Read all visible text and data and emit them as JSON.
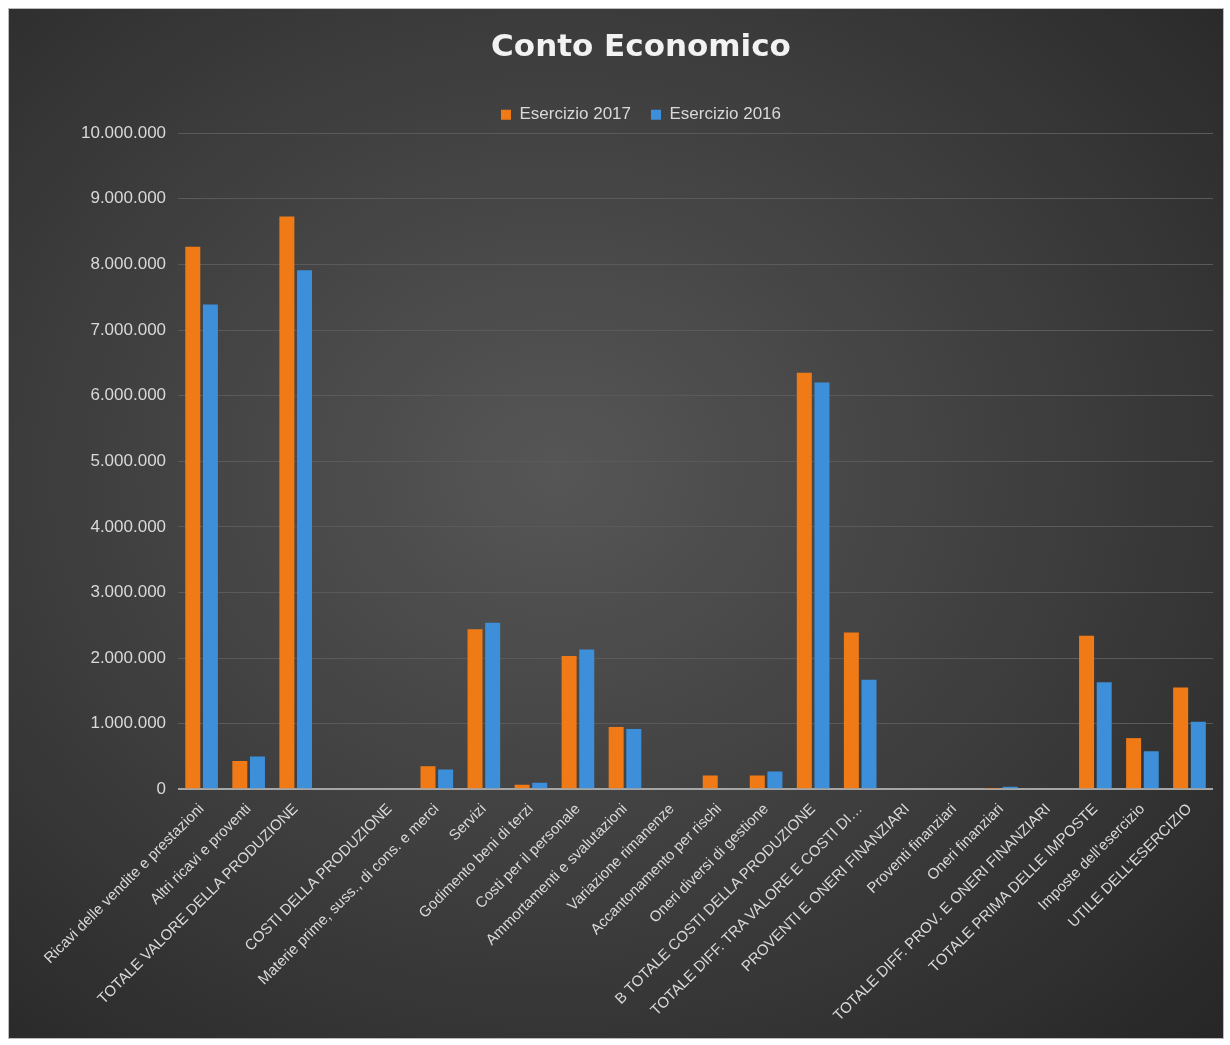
{
  "chart_data": {
    "type": "bar",
    "title": "Conto Economico",
    "categories": [
      "Ricavi delle vendite e prestazioni",
      "Altri ricavi e proventi",
      "TOTALE VALORE DELLA PRODUZIONE",
      null,
      "COSTI DELLA PRODUZIONE",
      "Materie prime, suss., di cons. e merci",
      "Servizi",
      "Godimento beni di terzi",
      "Costi per il personale",
      "Ammortamenti e svalutazioni",
      "Variazione rimanenze",
      "Accantonamento per rischi",
      "Oneri diversi di gestione",
      "B TOTALE COSTI DELLA PRODUZIONE",
      "TOTALE DIFF. TRA VALORE E COSTI DI…",
      "PROVENTI E ONERI FINANZIARI",
      "Proventi finanziari",
      "Oneri finanziari",
      "TOTALE DIFF. PROV. E ONERI FINANZIARI",
      "TOTALE PRIMA DELLE IMPOSTE",
      "Imposte dell’esercizio",
      "UTILE DELL’ESERCIZIO"
    ],
    "series": [
      {
        "name": "Esercizio 2017",
        "color": "#f07b16",
        "values": [
          8270000,
          430000,
          8730000,
          0,
          0,
          350000,
          2440000,
          70000,
          2030000,
          950000,
          0,
          210000,
          210000,
          6350000,
          2390000,
          0,
          0,
          10000,
          0,
          2340000,
          780000,
          1550000
        ]
      },
      {
        "name": "Esercizio 2016",
        "color": "#3d8fd9",
        "values": [
          7390000,
          500000,
          7910000,
          0,
          0,
          300000,
          2540000,
          100000,
          2130000,
          920000,
          0,
          0,
          270000,
          6200000,
          1670000,
          0,
          0,
          40000,
          0,
          1630000,
          580000,
          1030000
        ]
      }
    ],
    "ylim": [
      0,
      10000000
    ],
    "yticks": [
      {
        "value": 0,
        "label": "0"
      },
      {
        "value": 1000000,
        "label": "1.000.000"
      },
      {
        "value": 2000000,
        "label": "2.000.000"
      },
      {
        "value": 3000000,
        "label": "3.000.000"
      },
      {
        "value": 4000000,
        "label": "4.000.000"
      },
      {
        "value": 5000000,
        "label": "5.000.000"
      },
      {
        "value": 6000000,
        "label": "6.000.000"
      },
      {
        "value": 7000000,
        "label": "7.000.000"
      },
      {
        "value": 8000000,
        "label": "8.000.000"
      },
      {
        "value": 9000000,
        "label": "9.000.000"
      },
      {
        "value": 10000000,
        "label": "10.000.000"
      }
    ],
    "grid": "y",
    "legend": "top"
  }
}
